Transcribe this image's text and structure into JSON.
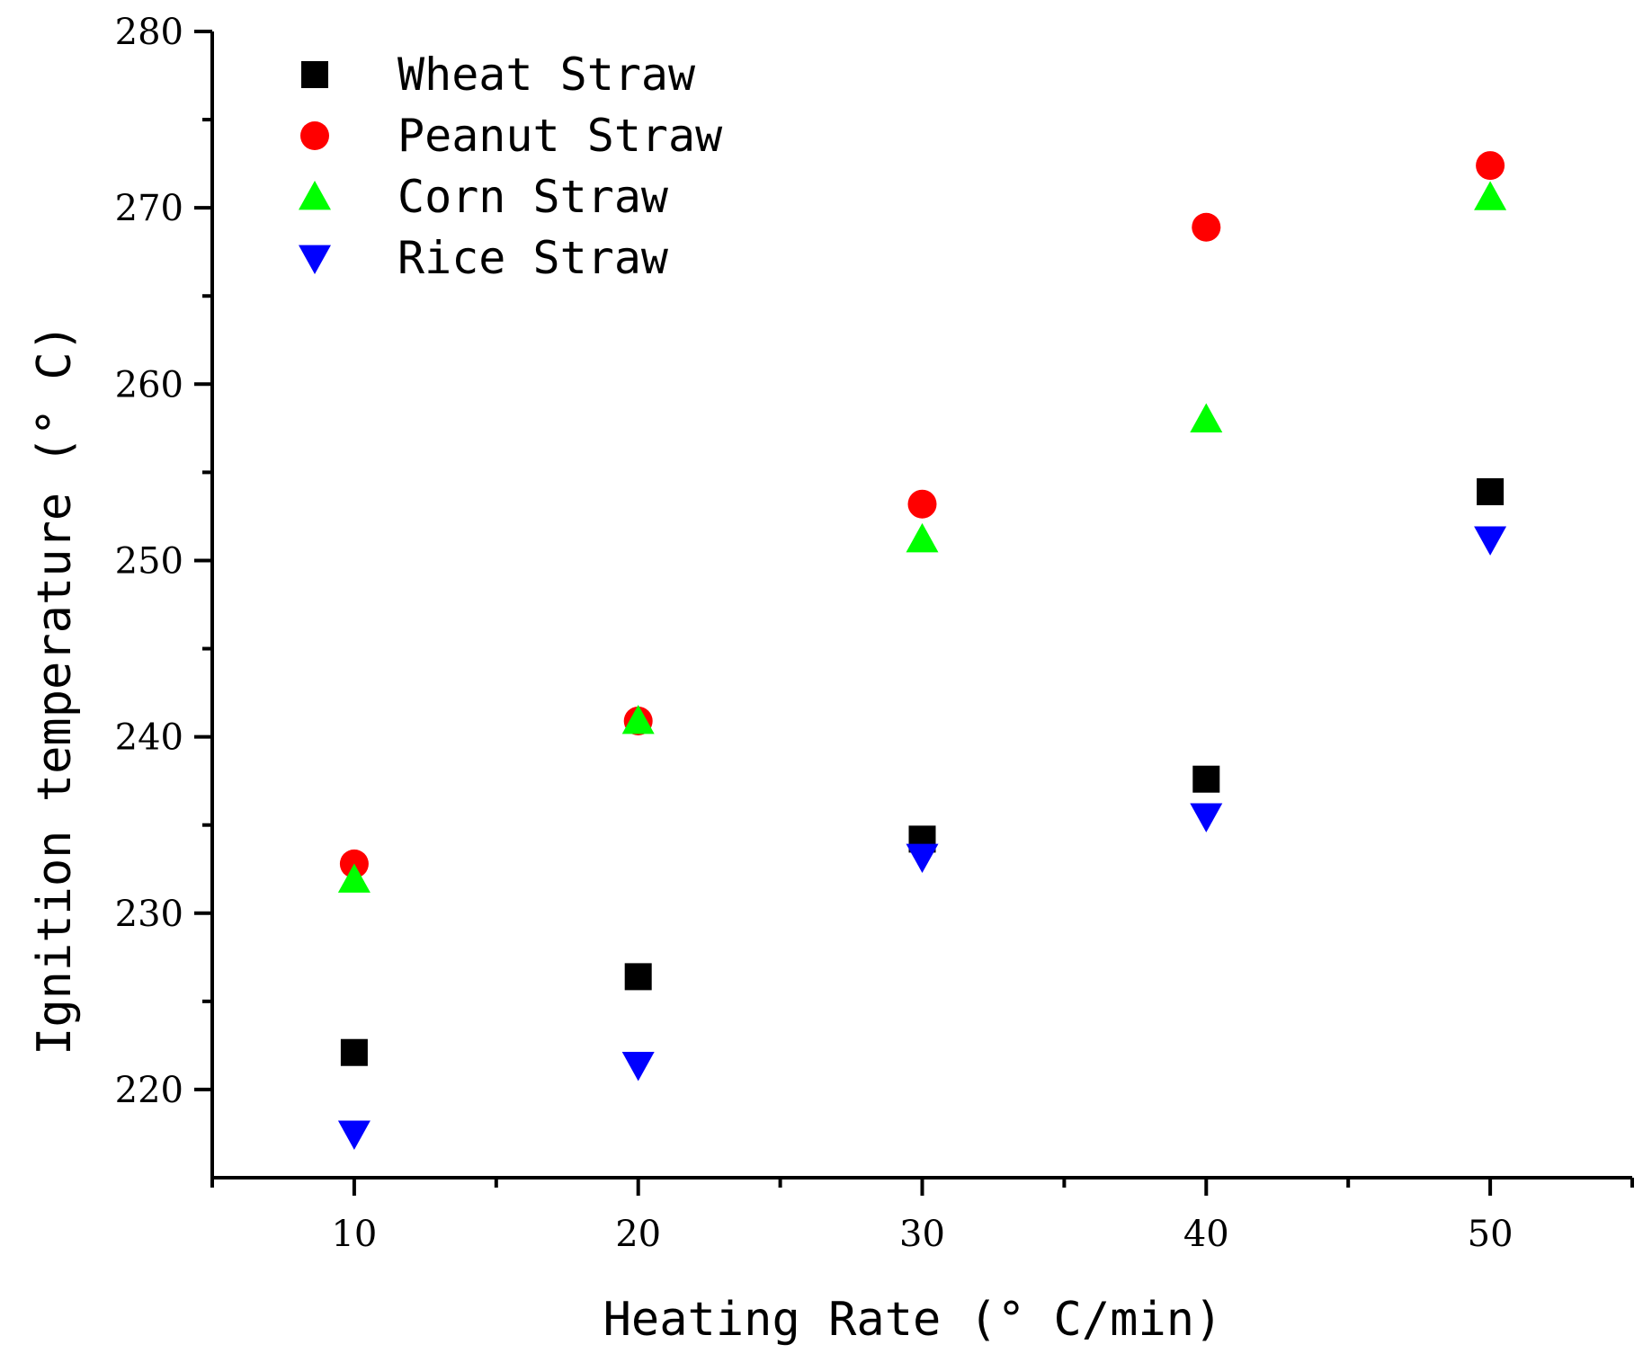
{
  "chart_data": {
    "type": "scatter",
    "title": "",
    "xlabel": "Heating Rate (° C/min)",
    "ylabel": "Ignition temperature (° C)",
    "xlim": [
      5,
      55
    ],
    "ylim": [
      215,
      280
    ],
    "xticks": [
      10,
      20,
      30,
      40,
      50
    ],
    "yticks": [
      220,
      230,
      240,
      250,
      260,
      270,
      280
    ],
    "x_minor_ticks": [
      5,
      15,
      25,
      35,
      45,
      55
    ],
    "y_minor_ticks": [
      225,
      235,
      245,
      255,
      265,
      275
    ],
    "grid": false,
    "legend_position": "top-left",
    "x": [
      10,
      20,
      30,
      40,
      50
    ],
    "series": [
      {
        "name": "Wheat Straw",
        "marker": "square",
        "color": "#000000",
        "values": [
          222.1,
          226.4,
          234.2,
          237.6,
          253.9
        ]
      },
      {
        "name": "Peanut Straw",
        "marker": "circle",
        "color": "#ff0000",
        "values": [
          232.8,
          240.9,
          253.2,
          268.9,
          272.4
        ]
      },
      {
        "name": "Corn Straw",
        "marker": "triangle-up",
        "color": "#00ff00",
        "values": [
          231.9,
          240.9,
          251.2,
          258.0,
          270.6
        ]
      },
      {
        "name": "Rice Straw",
        "marker": "triangle-down",
        "color": "#0000ff",
        "values": [
          217.5,
          221.4,
          233.2,
          235.5,
          251.2
        ]
      }
    ]
  }
}
